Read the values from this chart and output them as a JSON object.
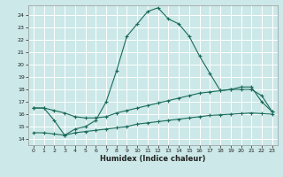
{
  "xlabel": "Humidex (Indice chaleur)",
  "background_color": "#cce8e8",
  "grid_color": "#ffffff",
  "line_color": "#1a6b5a",
  "xlim": [
    -0.5,
    23.5
  ],
  "ylim": [
    13.5,
    24.8
  ],
  "yticks": [
    14,
    15,
    16,
    17,
    18,
    19,
    20,
    21,
    22,
    23,
    24
  ],
  "xticks": [
    0,
    1,
    2,
    3,
    4,
    5,
    6,
    7,
    8,
    9,
    10,
    11,
    12,
    13,
    14,
    15,
    16,
    17,
    18,
    19,
    20,
    21,
    22,
    23
  ],
  "curve1_x": [
    0,
    1,
    2,
    3,
    4,
    5,
    6,
    7,
    8,
    9,
    10,
    11,
    12,
    13,
    14,
    15,
    16,
    17,
    18,
    19,
    20,
    21,
    22,
    23
  ],
  "curve1_y": [
    16.5,
    16.5,
    15.5,
    14.3,
    14.8,
    15.0,
    15.5,
    17.0,
    19.5,
    22.3,
    23.3,
    24.3,
    24.6,
    23.7,
    23.3,
    22.3,
    20.7,
    19.3,
    17.9,
    18.0,
    18.2,
    18.2,
    17.0,
    16.2
  ],
  "curve2_x": [
    0,
    1,
    2,
    3,
    4,
    5,
    6,
    7,
    8,
    9,
    10,
    11,
    12,
    13,
    14,
    15,
    16,
    17,
    18,
    19,
    20,
    21,
    22,
    23
  ],
  "curve2_y": [
    16.5,
    16.5,
    16.3,
    16.1,
    15.8,
    15.7,
    15.7,
    15.8,
    16.1,
    16.3,
    16.5,
    16.7,
    16.9,
    17.1,
    17.3,
    17.5,
    17.7,
    17.8,
    17.9,
    18.0,
    18.0,
    18.0,
    17.5,
    16.2
  ],
  "curve3_x": [
    0,
    1,
    2,
    3,
    4,
    5,
    6,
    7,
    8,
    9,
    10,
    11,
    12,
    13,
    14,
    15,
    16,
    17,
    18,
    19,
    20,
    21,
    22,
    23
  ],
  "curve3_y": [
    14.5,
    14.5,
    14.4,
    14.3,
    14.5,
    14.6,
    14.7,
    14.8,
    14.9,
    15.0,
    15.2,
    15.3,
    15.4,
    15.5,
    15.6,
    15.7,
    15.8,
    15.9,
    15.95,
    16.0,
    16.05,
    16.1,
    16.05,
    16.0
  ]
}
